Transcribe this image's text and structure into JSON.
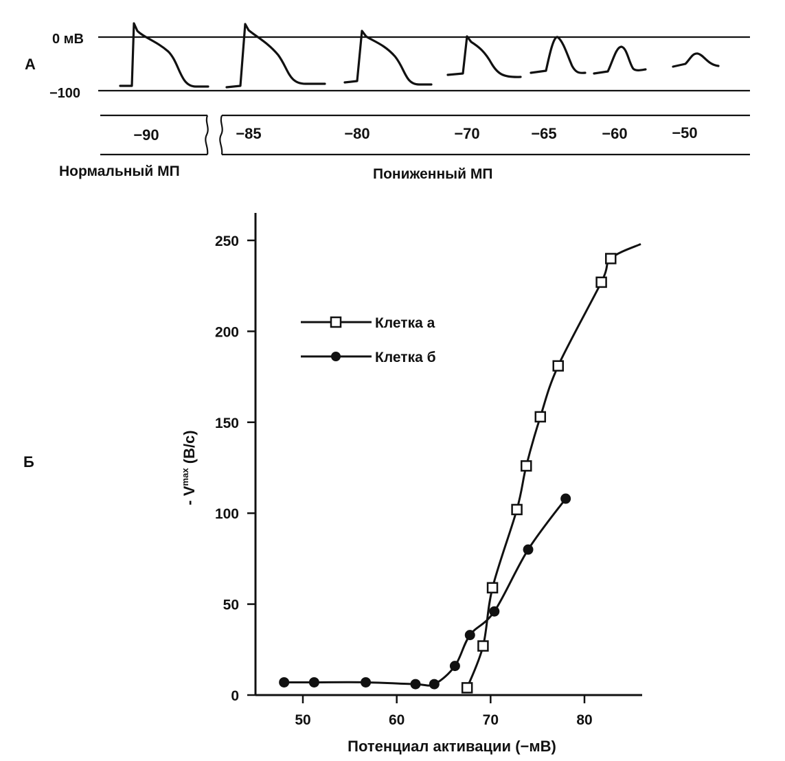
{
  "panel_a": {
    "panel_label": "А",
    "zero_label": "0  мВ",
    "neg100_label": "−100",
    "normal_label": "Нормальный  МП",
    "reduced_label": "Пониженный  МП",
    "potentials": [
      "−90",
      "−85",
      "−80",
      "−70",
      "−65",
      "−60",
      "−50"
    ]
  },
  "panel_b": {
    "panel_label": "Б"
  },
  "chart_data": {
    "type": "line",
    "title": "",
    "xlabel": "Потенциал  активации  (−мВ)",
    "ylabel": "Vmax  (В/с)",
    "ylabel_parts": {
      "prefix": "-  V",
      "superscript": "max",
      "suffix": "  (В/с)"
    },
    "xlim": [
      45,
      86
    ],
    "ylim": [
      0,
      255
    ],
    "xticks": [
      50,
      60,
      70,
      80
    ],
    "xtick_labels": [
      "50",
      "60",
      "70",
      "80"
    ],
    "yticks": [
      0,
      50,
      100,
      150,
      200,
      250
    ],
    "ytick_labels": [
      "0",
      "50",
      "100",
      "150",
      "200",
      "250"
    ],
    "grid": false,
    "legend_position": "upper-left",
    "series": [
      {
        "name": "Клетка  а",
        "marker": "open-square",
        "points": [
          [
            67.5,
            4
          ],
          [
            69.2,
            27
          ],
          [
            70.2,
            59
          ],
          [
            72.8,
            102
          ],
          [
            73.8,
            126
          ],
          [
            75.3,
            153
          ],
          [
            77.2,
            181
          ],
          [
            81.8,
            227
          ],
          [
            82.8,
            240
          ]
        ]
      },
      {
        "name": "Клетка  б",
        "marker": "filled-circle",
        "points": [
          [
            48,
            7
          ],
          [
            51.2,
            7
          ],
          [
            56.7,
            7
          ],
          [
            62,
            6
          ],
          [
            64,
            6
          ],
          [
            66.2,
            16
          ],
          [
            67.8,
            33
          ],
          [
            70.4,
            46
          ],
          [
            74,
            80
          ],
          [
            78,
            108
          ]
        ]
      }
    ]
  }
}
